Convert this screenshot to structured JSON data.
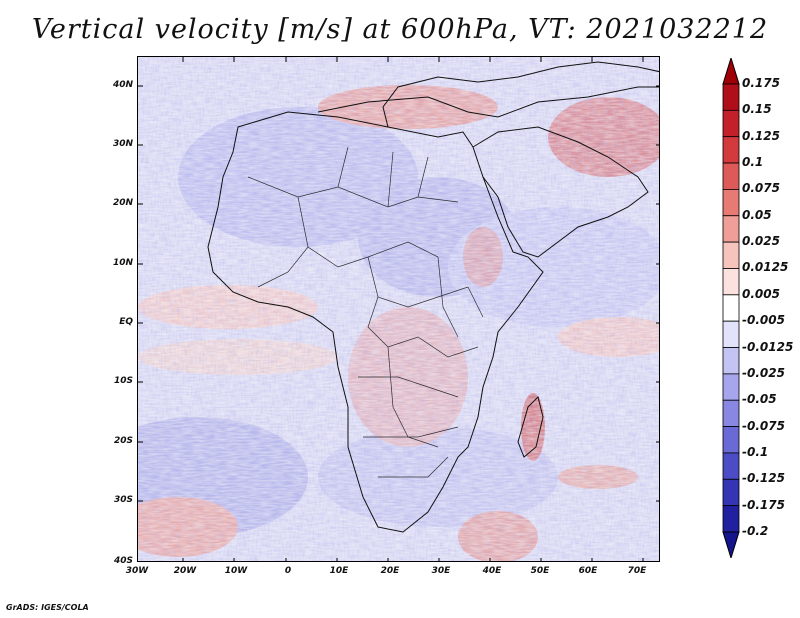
{
  "title": "Vertical velocity [m/s] at 600hPa, VT: 2021032212",
  "credit": "GrADS: IGES/COLA",
  "map": {
    "region": "Africa and surrounding oceans",
    "lat_labels": [
      "40N",
      "30N",
      "20N",
      "10N",
      "EQ",
      "10S",
      "20S",
      "30S",
      "40S"
    ],
    "lon_labels": [
      "30W",
      "20W",
      "10W",
      "0",
      "10E",
      "20E",
      "30E",
      "40E",
      "50E",
      "60E",
      "70E"
    ]
  },
  "colorbar": {
    "labels": [
      "0.175",
      "0.15",
      "0.125",
      "0.1",
      "0.075",
      "0.05",
      "0.025",
      "0.0125",
      "0.005",
      "-0.005",
      "-0.0125",
      "-0.025",
      "-0.05",
      "-0.075",
      "-0.1",
      "-0.125",
      "-0.175",
      "-0.2"
    ],
    "colors": [
      "#b00e18",
      "#c4202a",
      "#d23a3e",
      "#de5a58",
      "#e87a74",
      "#f09e98",
      "#f7c3bd",
      "#fbe2de",
      "#ffffff",
      "#e2e2fa",
      "#c4c4f4",
      "#a6a6ec",
      "#8888e2",
      "#6a6ad6",
      "#4c4cc6",
      "#3434b4",
      "#2020a0"
    ],
    "top_arrow_color": "#a00008",
    "bottom_arrow_color": "#14148c"
  }
}
